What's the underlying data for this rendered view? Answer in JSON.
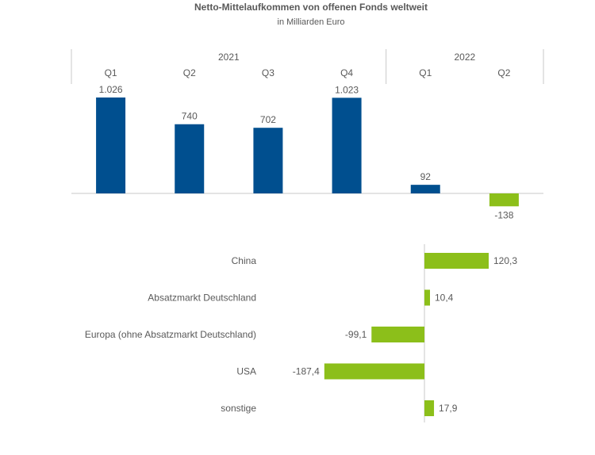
{
  "title": "Netto-Mittelaufkommen von offenen Fonds weltweit",
  "subtitle": "in Milliarden Euro",
  "colors": {
    "positive_top": "#004f8f",
    "negative_top": "#8cbf1a",
    "bottom": "#8cbf1a",
    "text": "#595959",
    "axis": "#c8c8c8"
  },
  "chart_data": [
    {
      "type": "bar",
      "groups": [
        {
          "label": "2021",
          "categories": [
            "Q1",
            "Q2",
            "Q3",
            "Q4"
          ]
        },
        {
          "label": "2022",
          "categories": [
            "Q1",
            "Q2"
          ]
        }
      ],
      "categories": [
        "Q1",
        "Q2",
        "Q3",
        "Q4",
        "Q1",
        "Q2"
      ],
      "values": [
        1026,
        740,
        702,
        1023,
        92,
        -138
      ],
      "data_labels": [
        "1.026",
        "740",
        "702",
        "1.023",
        "92",
        "-138"
      ]
    },
    {
      "type": "bar",
      "orientation": "horizontal",
      "categories": [
        "China",
        "Absatzmarkt Deutschland",
        "Europa (ohne Absatzmarkt Deutschland)",
        "USA",
        "sonstige"
      ],
      "values": [
        120.3,
        10.4,
        -99.1,
        -187.4,
        17.9
      ],
      "data_labels": [
        "120,3",
        "10,4",
        "-99,1",
        "-187,4",
        "17,9"
      ]
    }
  ]
}
